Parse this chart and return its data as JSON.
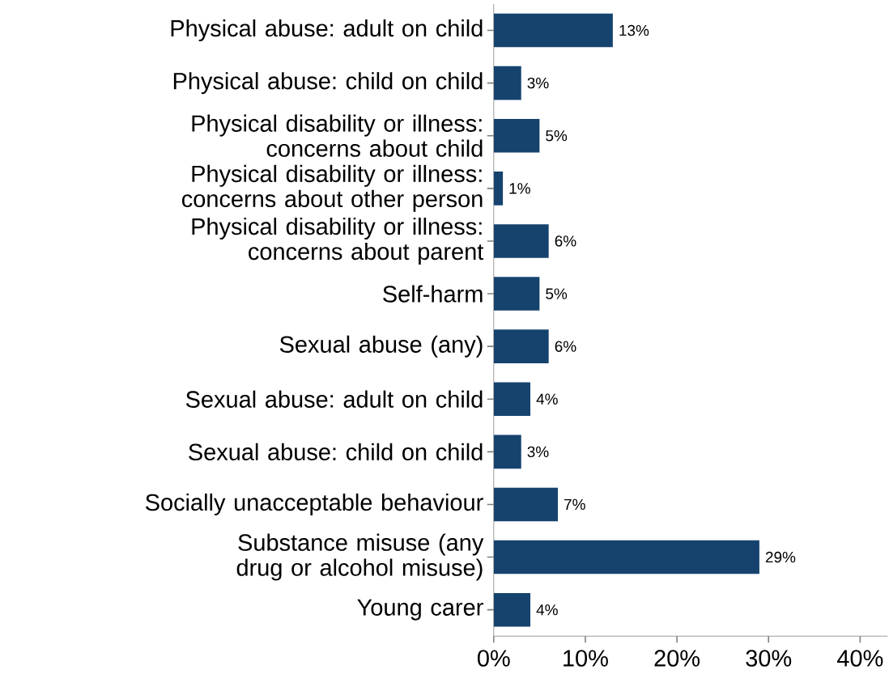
{
  "chart_data": {
    "type": "bar",
    "orientation": "horizontal",
    "categories": [
      "Physical abuse: adult on child",
      "Physical abuse: child on child",
      "Physical disability or illness: concerns about child",
      "Physical disability or illness: concerns about other person",
      "Physical disability or illness: concerns about parent",
      "Self-harm",
      "Sexual abuse (any)",
      "Sexual abuse: adult on child",
      "Sexual abuse: child on child",
      "Socially unacceptable behaviour",
      "Substance misuse (any drug or alcohol misuse)",
      "Young carer"
    ],
    "values": [
      13,
      3,
      5,
      1,
      6,
      5,
      6,
      4,
      3,
      7,
      29,
      4
    ],
    "value_labels": [
      "13%",
      "3%",
      "5%",
      "1%",
      "6%",
      "5%",
      "6%",
      "4%",
      "3%",
      "7%",
      "29%",
      "4%"
    ],
    "color": "#15436e",
    "xlim": [
      0,
      43
    ],
    "xticks": [
      {
        "value": 0,
        "label": "0%"
      },
      {
        "value": 10,
        "label": "10%"
      },
      {
        "value": 20,
        "label": "20%"
      },
      {
        "value": 30,
        "label": "30%"
      },
      {
        "value": 40,
        "label": "40%"
      }
    ],
    "grid": false
  }
}
